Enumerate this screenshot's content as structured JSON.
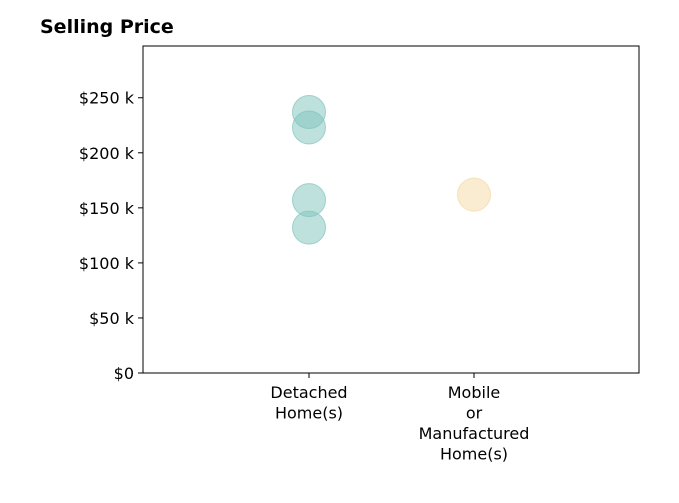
{
  "chart_data": {
    "type": "scatter",
    "title": "Selling Price",
    "xlabel": "",
    "ylabel": "",
    "categories": [
      [
        "Detached",
        "Home(s)"
      ],
      [
        "Mobile",
        "or",
        "Manufactured",
        "Home(s)"
      ]
    ],
    "points": [
      {
        "category": 0,
        "value": 237000,
        "color": "#7fc4bc"
      },
      {
        "category": 0,
        "value": 223000,
        "color": "#7fc4bc"
      },
      {
        "category": 0,
        "value": 157000,
        "color": "#7fc4bc"
      },
      {
        "category": 0,
        "value": 132000,
        "color": "#7fc4bc"
      },
      {
        "category": 1,
        "value": 162000,
        "color": "#f3d9a4"
      }
    ],
    "y_ticks": [
      {
        "value": 0,
        "label": "$0"
      },
      {
        "value": 50000,
        "label": "$50 k"
      },
      {
        "value": 100000,
        "label": "$100 k"
      },
      {
        "value": 150000,
        "label": "$150 k"
      },
      {
        "value": 200000,
        "label": "$200 k"
      },
      {
        "value": 250000,
        "label": "$250 k"
      }
    ],
    "ylim": [
      0,
      297000
    ],
    "grid": false,
    "legend": "none"
  }
}
